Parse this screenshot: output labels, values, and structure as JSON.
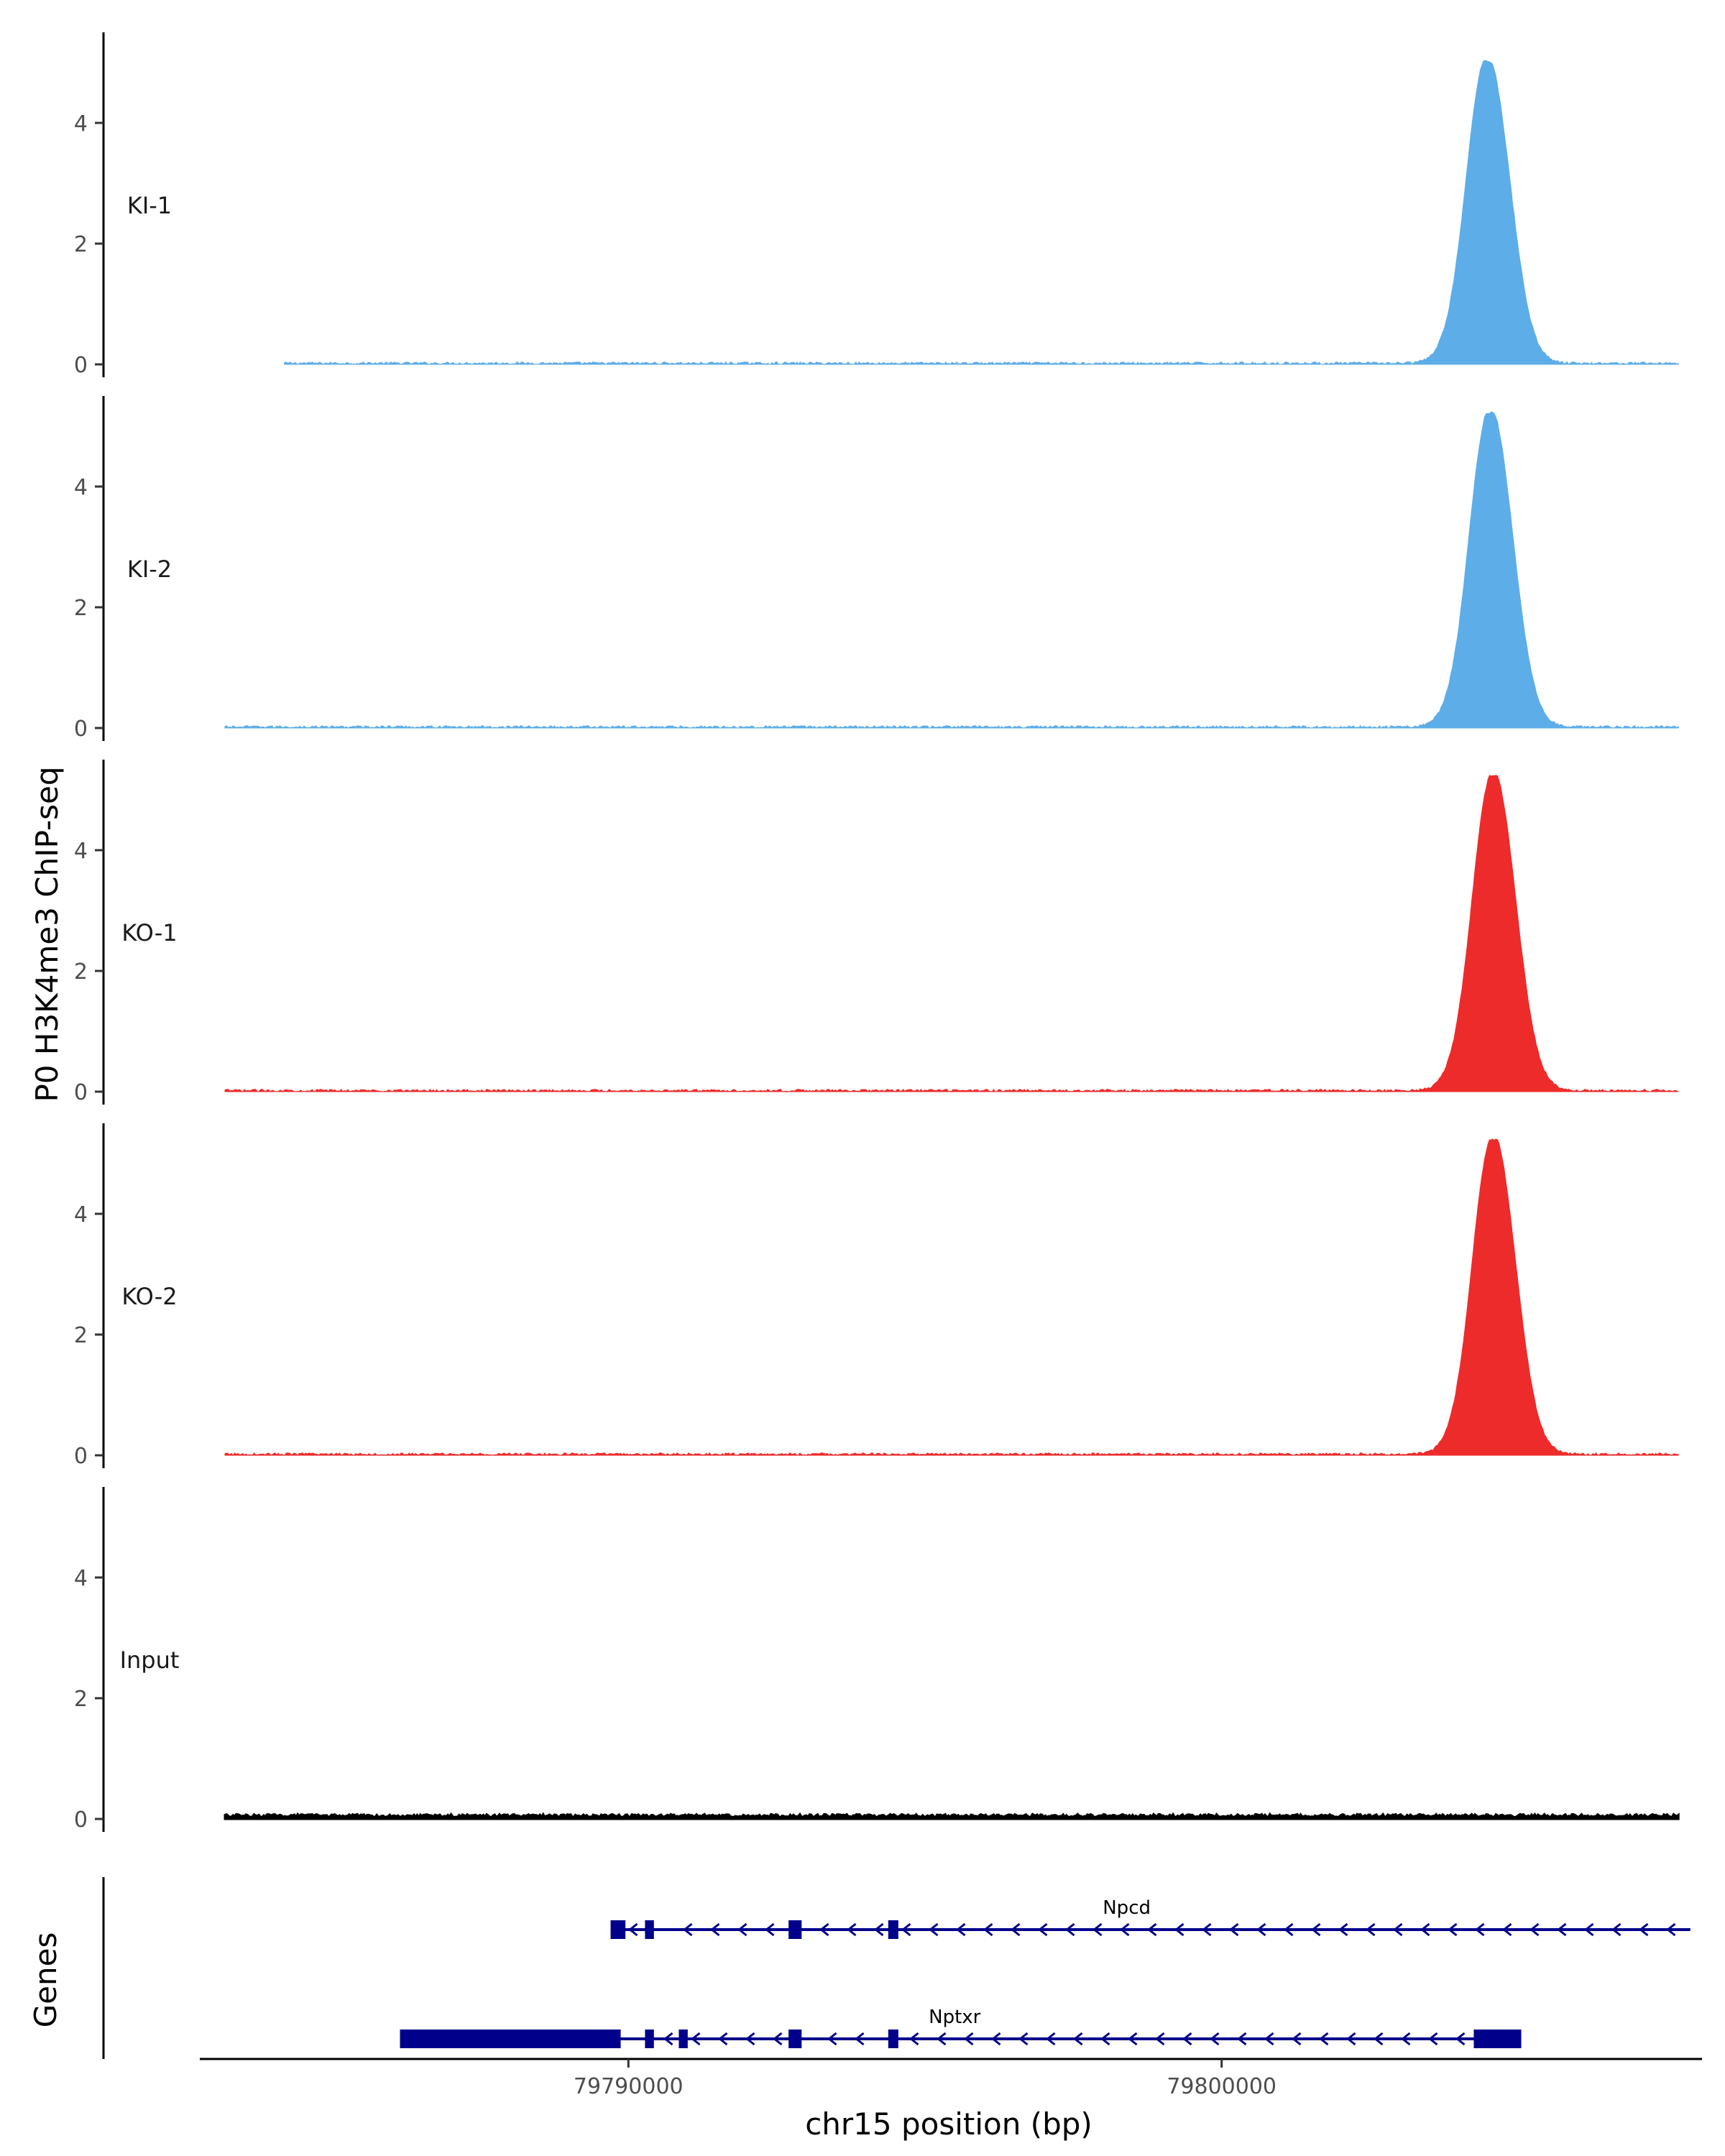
{
  "chart_data": {
    "type": "area",
    "ylabel": "P0 H3K4me3 ChIP-seq",
    "xlabel": "chr15 position (bp)",
    "genes_label": "Genes",
    "x_range": [
      79782800,
      79808000
    ],
    "ylim": [
      0,
      5.5
    ],
    "y_ticks": [
      "0",
      "2",
      "4"
    ],
    "x_ticks": [
      {
        "value": 79790000,
        "label": "79790000"
      },
      {
        "value": 79800000,
        "label": "79800000"
      }
    ],
    "grid": false,
    "tracks": [
      {
        "name": "KI-1",
        "color": "#5dade8",
        "peak_center": 79804500,
        "peak_height": 5.0
      },
      {
        "name": "KI-2",
        "color": "#5dade8",
        "peak_center": 79804550,
        "peak_height": 5.2
      },
      {
        "name": "KO-1",
        "color": "#ee2b2b",
        "peak_center": 79804600,
        "peak_height": 5.2
      },
      {
        "name": "KO-2",
        "color": "#ee2b2b",
        "peak_center": 79804600,
        "peak_height": 5.2
      },
      {
        "name": "Input",
        "color": "#000000",
        "peak_center": null,
        "peak_height": 0.05
      }
    ],
    "genes": [
      {
        "name": "Npcd",
        "strand": "-",
        "start": 79789700,
        "end": 79807900,
        "exons": [
          [
            79789700,
            79789950
          ],
          [
            79790280,
            79790430
          ],
          [
            79792700,
            79792920
          ],
          [
            79794380,
            79794550
          ]
        ],
        "color": "#00008b"
      },
      {
        "name": "Nptxr",
        "strand": "-",
        "start": 79786150,
        "end": 79805050,
        "exons": [
          [
            79786150,
            79789870
          ],
          [
            79790280,
            79790430
          ],
          [
            79790850,
            79791000
          ],
          [
            79792700,
            79792920
          ],
          [
            79794380,
            79794550
          ],
          [
            79804250,
            79805050
          ]
        ],
        "color": "#00008b"
      }
    ]
  }
}
